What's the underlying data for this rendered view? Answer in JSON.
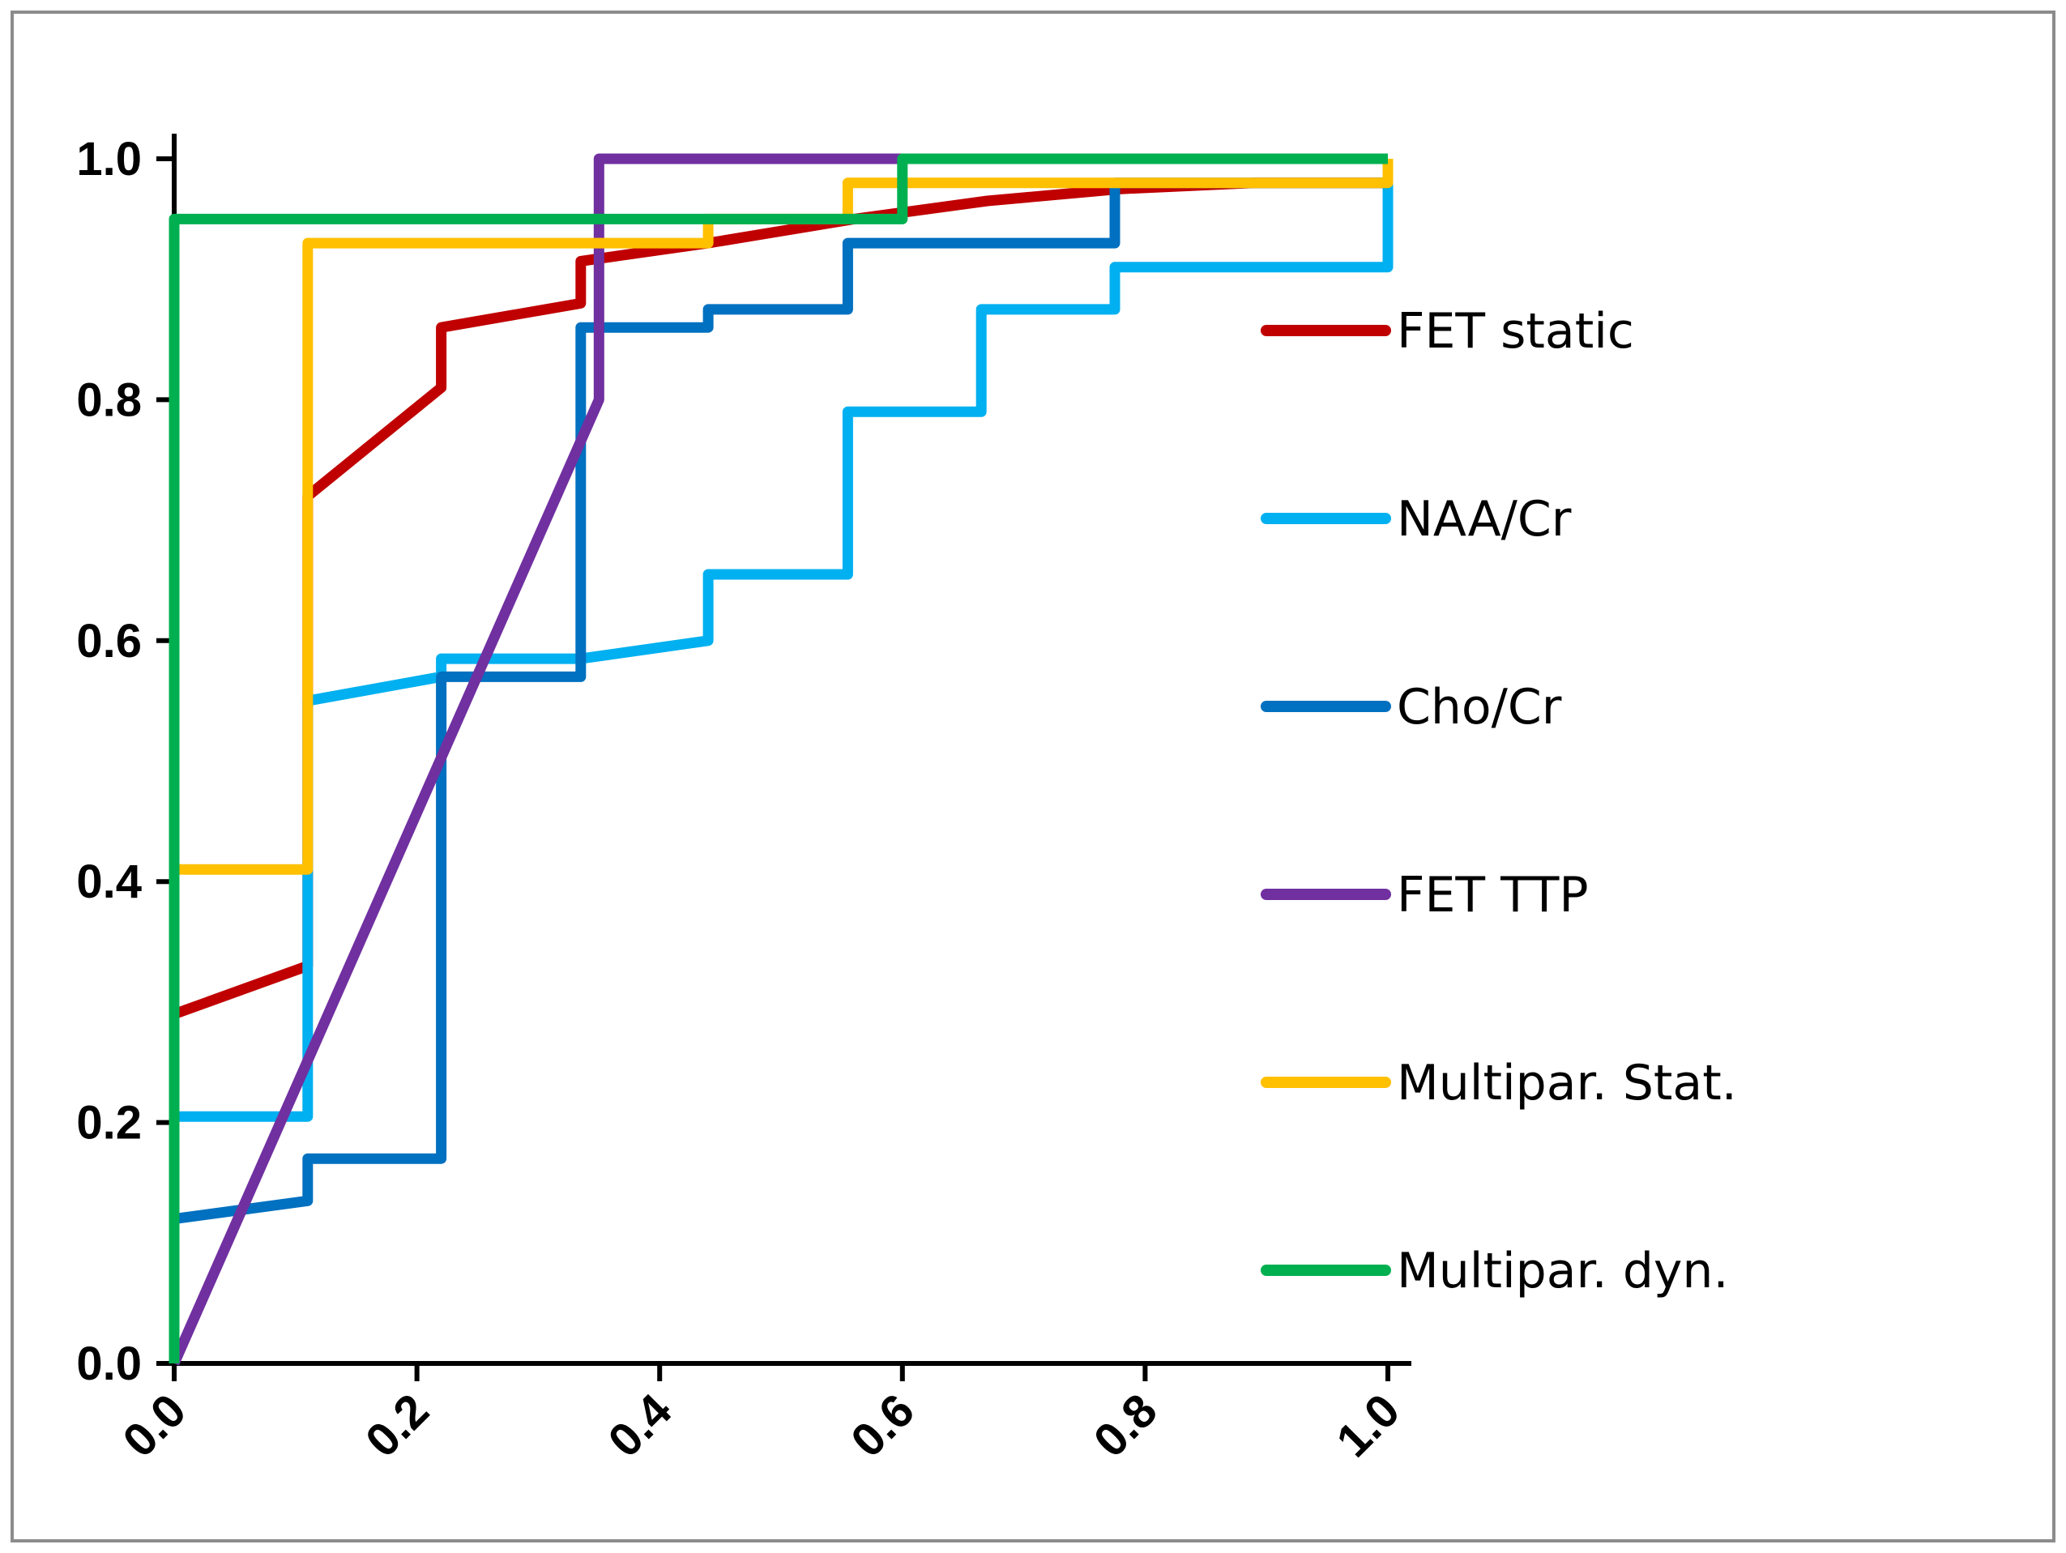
{
  "chart_data": {
    "type": "line",
    "title": "",
    "xlabel": "",
    "ylabel": "",
    "xlim": [
      0,
      1
    ],
    "ylim": [
      0,
      1
    ],
    "x_ticks": [
      "0.0",
      "0.2",
      "0.4",
      "0.6",
      "0.8",
      "1.0"
    ],
    "y_ticks": [
      "0.0",
      "0.2",
      "0.4",
      "0.6",
      "0.8",
      "1.0"
    ],
    "grid": false,
    "legend_position": "right",
    "series": [
      {
        "name": "FET static",
        "color": "#c00000",
        "points": [
          [
            0,
            0.29
          ],
          [
            0.11,
            0.33
          ],
          [
            0.11,
            0.72
          ],
          [
            0.22,
            0.81
          ],
          [
            0.22,
            0.86
          ],
          [
            0.335,
            0.88
          ],
          [
            0.335,
            0.915
          ],
          [
            0.44,
            0.93
          ],
          [
            0.56,
            0.95
          ],
          [
            0.67,
            0.965
          ],
          [
            0.78,
            0.975
          ],
          [
            0.89,
            0.98
          ],
          [
            1.0,
            0.98
          ]
        ]
      },
      {
        "name": "NAA/Cr",
        "color": "#00b0f0",
        "points": [
          [
            0,
            0.205
          ],
          [
            0.11,
            0.205
          ],
          [
            0.11,
            0.55
          ],
          [
            0.22,
            0.57
          ],
          [
            0.22,
            0.585
          ],
          [
            0.335,
            0.585
          ],
          [
            0.44,
            0.6
          ],
          [
            0.44,
            0.655
          ],
          [
            0.555,
            0.655
          ],
          [
            0.555,
            0.79
          ],
          [
            0.665,
            0.79
          ],
          [
            0.665,
            0.875
          ],
          [
            0.775,
            0.875
          ],
          [
            0.775,
            0.91
          ],
          [
            1.0,
            0.91
          ],
          [
            1.0,
            0.98
          ]
        ]
      },
      {
        "name": "Cho/Cr",
        "color": "#0070c0",
        "points": [
          [
            0,
            0.12
          ],
          [
            0.11,
            0.135
          ],
          [
            0.11,
            0.17
          ],
          [
            0.22,
            0.17
          ],
          [
            0.22,
            0.57
          ],
          [
            0.335,
            0.57
          ],
          [
            0.335,
            0.86
          ],
          [
            0.44,
            0.86
          ],
          [
            0.44,
            0.875
          ],
          [
            0.555,
            0.875
          ],
          [
            0.555,
            0.93
          ],
          [
            0.775,
            0.93
          ],
          [
            0.775,
            0.98
          ],
          [
            1.0,
            0.98
          ]
        ]
      },
      {
        "name": "FET TTP",
        "color": "#7030a0",
        "points": [
          [
            0,
            0
          ],
          [
            0.35,
            0.8
          ],
          [
            0.35,
            1.0
          ],
          [
            0.6,
            1.0
          ]
        ]
      },
      {
        "name": "Multipar. Stat.",
        "color": "#ffc000",
        "points": [
          [
            0,
            0.41
          ],
          [
            0.11,
            0.41
          ],
          [
            0.11,
            0.93
          ],
          [
            0.44,
            0.93
          ],
          [
            0.44,
            0.95
          ],
          [
            0.555,
            0.95
          ],
          [
            0.555,
            0.98
          ],
          [
            1.0,
            0.98
          ],
          [
            1.0,
            1.0
          ]
        ]
      },
      {
        "name": "Multipar. dyn.",
        "color": "#00b050",
        "points": [
          [
            0,
            0
          ],
          [
            0,
            0.95
          ],
          [
            0.6,
            0.95
          ],
          [
            0.6,
            1.0
          ],
          [
            1.0,
            1.0
          ]
        ]
      }
    ]
  }
}
